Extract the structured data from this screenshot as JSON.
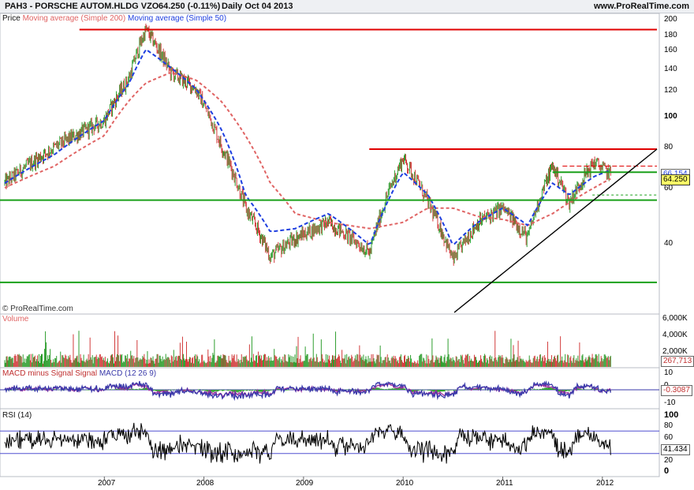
{
  "header": {
    "instrument": "PAH3 - PORSCHE AUTOM.HLDG VZO",
    "quote": "64.250 (-0.11%)",
    "period": "Daily  Oct 04 2013",
    "site": "www.ProRealTime.com"
  },
  "legend": {
    "price": "Price",
    "ma200": "Moving average (Simple 200)",
    "ma50": "Moving average (Simple 50)",
    "copyright": "© ProRealTime.com"
  },
  "colors": {
    "price_up": "#2f9e2f",
    "price_down": "#d23c3c",
    "ma200": "#e06464",
    "ma50": "#1f3fe0",
    "hline_red": "#e00000",
    "hline_green": "#1aa01a",
    "trend": "#000000",
    "macd_line": "#3a3aaa",
    "macd_signal": "#a030a0",
    "macd_hist": "#2aa02a",
    "rsi": "#000000",
    "rsi_bands": "#5050d0"
  },
  "x_axis": {
    "labels": [
      "2007",
      "2008",
      "2009",
      "2010",
      "2011",
      "2012"
    ]
  },
  "price_panel": {
    "ticks": [
      "200",
      "180",
      "160",
      "140",
      "120",
      "100",
      "80",
      "60",
      "40"
    ],
    "last_price": "64.250",
    "ma50_value": "66.154"
  },
  "volume_panel": {
    "title": "Volume",
    "ticks": [
      "6,000K",
      "4,000K",
      "2,000K"
    ],
    "last_value": "267,713"
  },
  "macd_panel": {
    "title_a": "MACD minus Signal Signal",
    "title_b": "MACD (12 26 9)",
    "ticks": [
      "10",
      "0",
      "-10"
    ],
    "last_value": "-0.3087"
  },
  "rsi_panel": {
    "title": "RSI (14)",
    "ticks": [
      "100",
      "80",
      "60",
      "20",
      "0"
    ],
    "last_value": "41.434"
  },
  "chart_data": {
    "type": "line",
    "title": "PAH3 - PORSCHE AUTOM.HLDG VZO",
    "y_scale": "log",
    "ylim": [
      27,
      200
    ],
    "x": [
      "2006-01",
      "2006-07",
      "2007-01",
      "2007-04",
      "2007-06",
      "2007-09",
      "2007-12",
      "2008-03",
      "2008-06",
      "2008-09",
      "2008-12",
      "2009-04",
      "2009-09",
      "2010-01",
      "2010-04",
      "2010-07",
      "2010-10",
      "2011-01",
      "2011-04",
      "2011-07",
      "2011-09",
      "2011-12",
      "2012-02"
    ],
    "series": [
      {
        "name": "Price",
        "values": [
          60,
          78,
          95,
          130,
          185,
          135,
          120,
          80,
          50,
          35,
          40,
          45,
          36,
          72,
          52,
          34,
          45,
          50,
          40,
          68,
          52,
          70,
          64
        ]
      },
      {
        "name": "Moving average (Simple 200)",
        "values": [
          58,
          68,
          85,
          110,
          125,
          135,
          128,
          110,
          85,
          60,
          48,
          45,
          43,
          45,
          50,
          50,
          47,
          46,
          44,
          48,
          52,
          58,
          62
        ]
      },
      {
        "name": "Moving average (Simple 50)",
        "values": [
          60,
          74,
          95,
          125,
          160,
          140,
          120,
          90,
          55,
          42,
          43,
          48,
          38,
          65,
          55,
          38,
          45,
          50,
          44,
          60,
          55,
          63,
          66
        ]
      }
    ],
    "horizontal_levels": [
      185,
      77,
      53,
      29,
      65
    ],
    "grid": false,
    "legend": "top-left"
  }
}
